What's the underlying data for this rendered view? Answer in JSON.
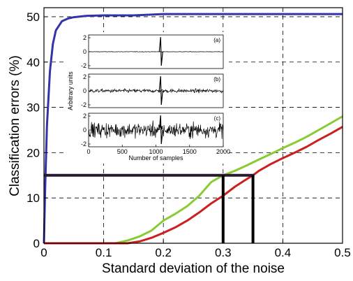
{
  "chart_data": {
    "type": "line",
    "xlabel": "Standard deviation of the noise",
    "ylabel": "Classification errors (%)",
    "xlim": [
      0,
      0.5
    ],
    "ylim": [
      0,
      52
    ],
    "xticks": [
      "0",
      "0.1",
      "0.2",
      "0.3",
      "0.4",
      "0.5"
    ],
    "yticks": [
      "0",
      "10",
      "20",
      "30",
      "40",
      "50"
    ],
    "grid": "dashed",
    "colors": {
      "blue": "#3333aa",
      "green": "#88cc33",
      "red": "#cc1f1f",
      "black": "#000000"
    },
    "series": [
      {
        "color": "blue",
        "x": [
          0,
          0.002,
          0.005,
          0.01,
          0.015,
          0.02,
          0.03,
          0.04,
          0.05,
          0.07,
          0.1,
          0.15,
          0.2,
          0.3,
          0.4,
          0.5
        ],
        "y": [
          0,
          12,
          26,
          38,
          44,
          47,
          49,
          49.6,
          49.9,
          50.2,
          50.3,
          50.3,
          50.6,
          50.6,
          50.6,
          50.6
        ]
      },
      {
        "color": "green",
        "x": [
          0,
          0.12,
          0.14,
          0.16,
          0.18,
          0.2,
          0.22,
          0.24,
          0.26,
          0.28,
          0.3,
          0.32,
          0.34,
          0.36,
          0.38,
          0.4,
          0.42,
          0.44,
          0.46,
          0.48,
          0.5
        ],
        "y": [
          0,
          0,
          0.6,
          1.5,
          2.8,
          5,
          6.5,
          8.2,
          10.5,
          13.5,
          15,
          16,
          17.2,
          18.5,
          19.7,
          21,
          22.2,
          23.5,
          25,
          26.5,
          28
        ]
      },
      {
        "color": "red",
        "x": [
          0,
          0.14,
          0.16,
          0.18,
          0.2,
          0.22,
          0.24,
          0.26,
          0.28,
          0.3,
          0.32,
          0.34,
          0.35,
          0.36,
          0.38,
          0.4,
          0.42,
          0.44,
          0.46,
          0.48,
          0.5
        ],
        "y": [
          0,
          0,
          0.4,
          1.2,
          2.3,
          3.5,
          5,
          6.8,
          8.8,
          10.5,
          12.5,
          14.2,
          15,
          16,
          17.5,
          18.8,
          20,
          21.3,
          22.8,
          24.2,
          25.7
        ]
      }
    ],
    "markers": [
      {
        "x": 0.3,
        "y": 15
      },
      {
        "x": 0.35,
        "y": 15
      }
    ],
    "inset": {
      "ylabel": "Arbitrary units",
      "xlabel": "Number of samples",
      "xlim": [
        0,
        2000
      ],
      "xticks": [
        "0",
        "500",
        "1000",
        "1500",
        "2000"
      ],
      "spike_at": 1070,
      "panels": [
        {
          "label": "(a)",
          "yticks": [
            "2",
            "0",
            "-2"
          ],
          "noise": 0.03
        },
        {
          "label": "(b)",
          "yticks": [
            "2",
            "0",
            "-2"
          ],
          "noise": 0.22
        },
        {
          "label": "(c)",
          "yticks": [
            "2",
            "0",
            "-2"
          ],
          "noise": 0.9
        }
      ]
    }
  }
}
